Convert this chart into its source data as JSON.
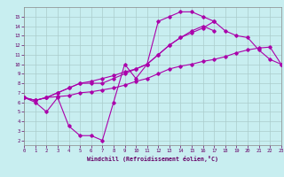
{
  "xlabel": "Windchill (Refroidissement éolien,°C)",
  "bg_color": "#c8eef0",
  "grid_color": "#aacccc",
  "line_color": "#aa00aa",
  "xlim": [
    0,
    23
  ],
  "ylim": [
    1.5,
    16
  ],
  "xticks": [
    0,
    1,
    2,
    3,
    4,
    5,
    6,
    7,
    8,
    9,
    10,
    11,
    12,
    13,
    14,
    15,
    16,
    17,
    18,
    19,
    20,
    21,
    22,
    23
  ],
  "yticks": [
    2,
    3,
    4,
    5,
    6,
    7,
    8,
    9,
    10,
    11,
    12,
    13,
    14,
    15
  ],
  "line1_x": [
    0,
    1,
    2,
    3,
    4,
    5,
    6,
    7,
    8,
    9,
    10,
    11,
    12,
    13,
    14,
    15,
    16,
    17
  ],
  "line1_y": [
    6.5,
    6.0,
    5.0,
    6.5,
    3.5,
    2.5,
    2.5,
    2.0,
    6.0,
    10.0,
    8.5,
    10.0,
    14.5,
    15.0,
    15.5,
    15.5,
    15.0,
    14.5
  ],
  "line2_x": [
    0,
    1,
    2,
    3,
    4,
    5,
    6,
    7,
    8,
    9,
    10,
    11,
    12,
    13,
    14,
    15,
    16,
    17,
    18,
    19,
    20,
    21,
    22,
    23
  ],
  "line2_y": [
    6.5,
    6.2,
    6.5,
    6.6,
    6.7,
    7.0,
    7.1,
    7.3,
    7.5,
    7.8,
    8.2,
    8.5,
    9.0,
    9.5,
    9.8,
    10.0,
    10.3,
    10.5,
    10.8,
    11.2,
    11.5,
    11.7,
    11.8,
    10.0
  ],
  "line3_x": [
    0,
    1,
    2,
    3,
    4,
    5,
    6,
    7,
    8,
    9,
    10,
    11,
    12,
    13,
    14,
    15,
    16,
    17
  ],
  "line3_y": [
    6.5,
    6.2,
    6.5,
    7.0,
    7.5,
    8.0,
    8.0,
    8.0,
    8.5,
    9.0,
    9.5,
    10.0,
    11.0,
    12.0,
    12.8,
    13.5,
    14.0,
    13.5
  ],
  "line4_x": [
    0,
    1,
    2,
    3,
    4,
    5,
    6,
    7,
    8,
    9,
    10,
    11,
    12,
    13,
    14,
    15,
    16,
    17,
    18,
    19,
    20,
    21,
    22,
    23
  ],
  "line4_y": [
    6.5,
    6.2,
    6.5,
    7.0,
    7.5,
    8.0,
    8.2,
    8.5,
    8.8,
    9.2,
    9.5,
    10.0,
    11.0,
    12.0,
    12.8,
    13.3,
    13.8,
    14.5,
    13.5,
    13.0,
    12.8,
    11.5,
    10.5,
    10.0
  ]
}
